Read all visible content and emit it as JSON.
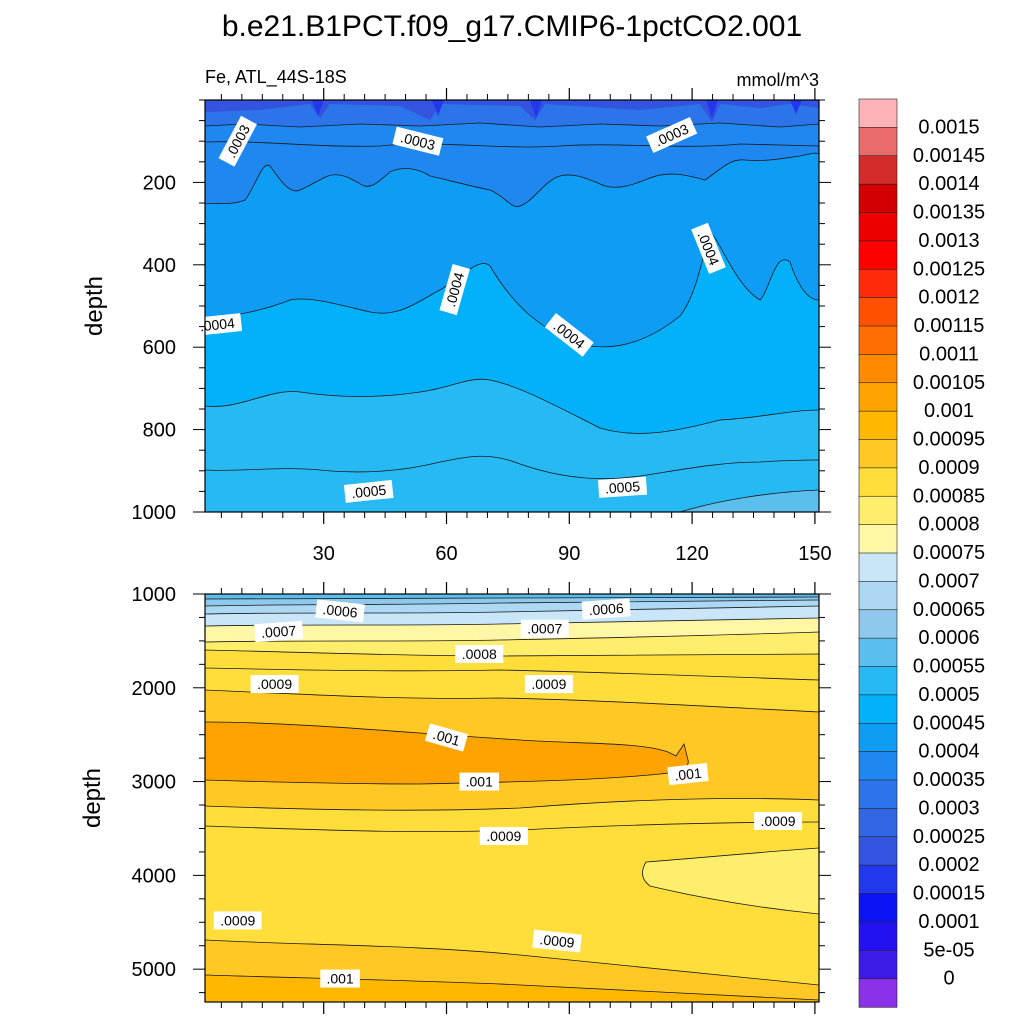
{
  "chart_data": {
    "type": "contour",
    "title": "b.e21.B1PCT.f09_g17.CMIP6-1pctCO2.001",
    "variable_label": "Fe, ATL_44S-18S",
    "units": "mmol/m^3",
    "x_ticks": [
      "30",
      "60",
      "90",
      "120",
      "150"
    ],
    "x_tick_values": [
      30,
      60,
      90,
      120,
      150
    ],
    "xlim": [
      1,
      151
    ],
    "panels": [
      {
        "name": "upper",
        "ylabel": "depth",
        "ylim": [
          0,
          1000
        ],
        "y_ticks": [
          "200",
          "400",
          "600",
          "800",
          "1000"
        ],
        "y_tick_values": [
          200,
          400,
          600,
          800,
          1000
        ],
        "contour_labels": [
          {
            "text": ".0003",
            "x": 9,
            "y": 100
          },
          {
            "text": ".0003",
            "x": 53,
            "y": 100
          },
          {
            "text": ".0003",
            "x": 115,
            "y": 85
          },
          {
            "text": ".0004",
            "x": 4,
            "y": 545
          },
          {
            "text": ".0004",
            "x": 62,
            "y": 460
          },
          {
            "text": ".0004",
            "x": 90,
            "y": 570
          },
          {
            "text": ".0004",
            "x": 124,
            "y": 360
          },
          {
            "text": ".0005",
            "x": 41,
            "y": 950
          },
          {
            "text": ".0005",
            "x": 103,
            "y": 940
          }
        ]
      },
      {
        "name": "lower",
        "ylabel": "depth",
        "ylim": [
          1000,
          5350
        ],
        "y_ticks": [
          "1000",
          "2000",
          "3000",
          "4000",
          "5000"
        ],
        "y_tick_values": [
          1000,
          2000,
          3000,
          4000,
          5000
        ],
        "contour_labels": [
          {
            "text": ".0006",
            "x": 34,
            "y": 1180
          },
          {
            "text": ".0006",
            "x": 99,
            "y": 1160
          },
          {
            "text": ".0007",
            "x": 19,
            "y": 1400
          },
          {
            "text": ".0007",
            "x": 84,
            "y": 1370
          },
          {
            "text": ".0008",
            "x": 68,
            "y": 1640
          },
          {
            "text": ".0009",
            "x": 18,
            "y": 1960
          },
          {
            "text": ".0009",
            "x": 85,
            "y": 1960
          },
          {
            "text": ".001",
            "x": 60,
            "y": 2530
          },
          {
            "text": ".001",
            "x": 68,
            "y": 3000
          },
          {
            "text": ".001",
            "x": 119,
            "y": 2920
          },
          {
            "text": ".0009",
            "x": 74,
            "y": 3580
          },
          {
            "text": ".0009",
            "x": 141,
            "y": 3420
          },
          {
            "text": ".0009",
            "x": 9,
            "y": 4480
          },
          {
            "text": ".0009",
            "x": 87,
            "y": 4700
          },
          {
            "text": ".001",
            "x": 34,
            "y": 5100
          }
        ]
      }
    ],
    "colorbar": {
      "levels": [
        "0.0015",
        "0.00145",
        "0.0014",
        "0.00135",
        "0.0013",
        "0.00125",
        "0.0012",
        "0.00115",
        "0.0011",
        "0.00105",
        "0.001",
        "0.00095",
        "0.0009",
        "0.00085",
        "0.0008",
        "0.00075",
        "0.0007",
        "0.00065",
        "0.0006",
        "0.00055",
        "0.0005",
        "0.00045",
        "0.0004",
        "0.00035",
        "0.0003",
        "0.00025",
        "0.0002",
        "0.00015",
        "0.0001",
        "5e-05",
        "0"
      ],
      "colors_top_to_bottom": [
        "#ffb3b6",
        "#e96b6b",
        "#d42b2b",
        "#d30000",
        "#ee0000",
        "#fe0000",
        "#ff2a0a",
        "#ff5200",
        "#ff6e00",
        "#ff8a00",
        "#ffa300",
        "#ffb700",
        "#ffc824",
        "#ffde3c",
        "#ffee6c",
        "#fff7a6",
        "#c8e6f8",
        "#acd8f4",
        "#8ec9ed",
        "#5bbeed",
        "#27b9f4",
        "#02b1fa",
        "#0e9cf5",
        "#1f88f0",
        "#2b74ea",
        "#3266e3",
        "#3453df",
        "#2238ec",
        "#0c13f5",
        "#2411f1",
        "#3c1be9",
        "#8a31e9"
      ]
    }
  }
}
